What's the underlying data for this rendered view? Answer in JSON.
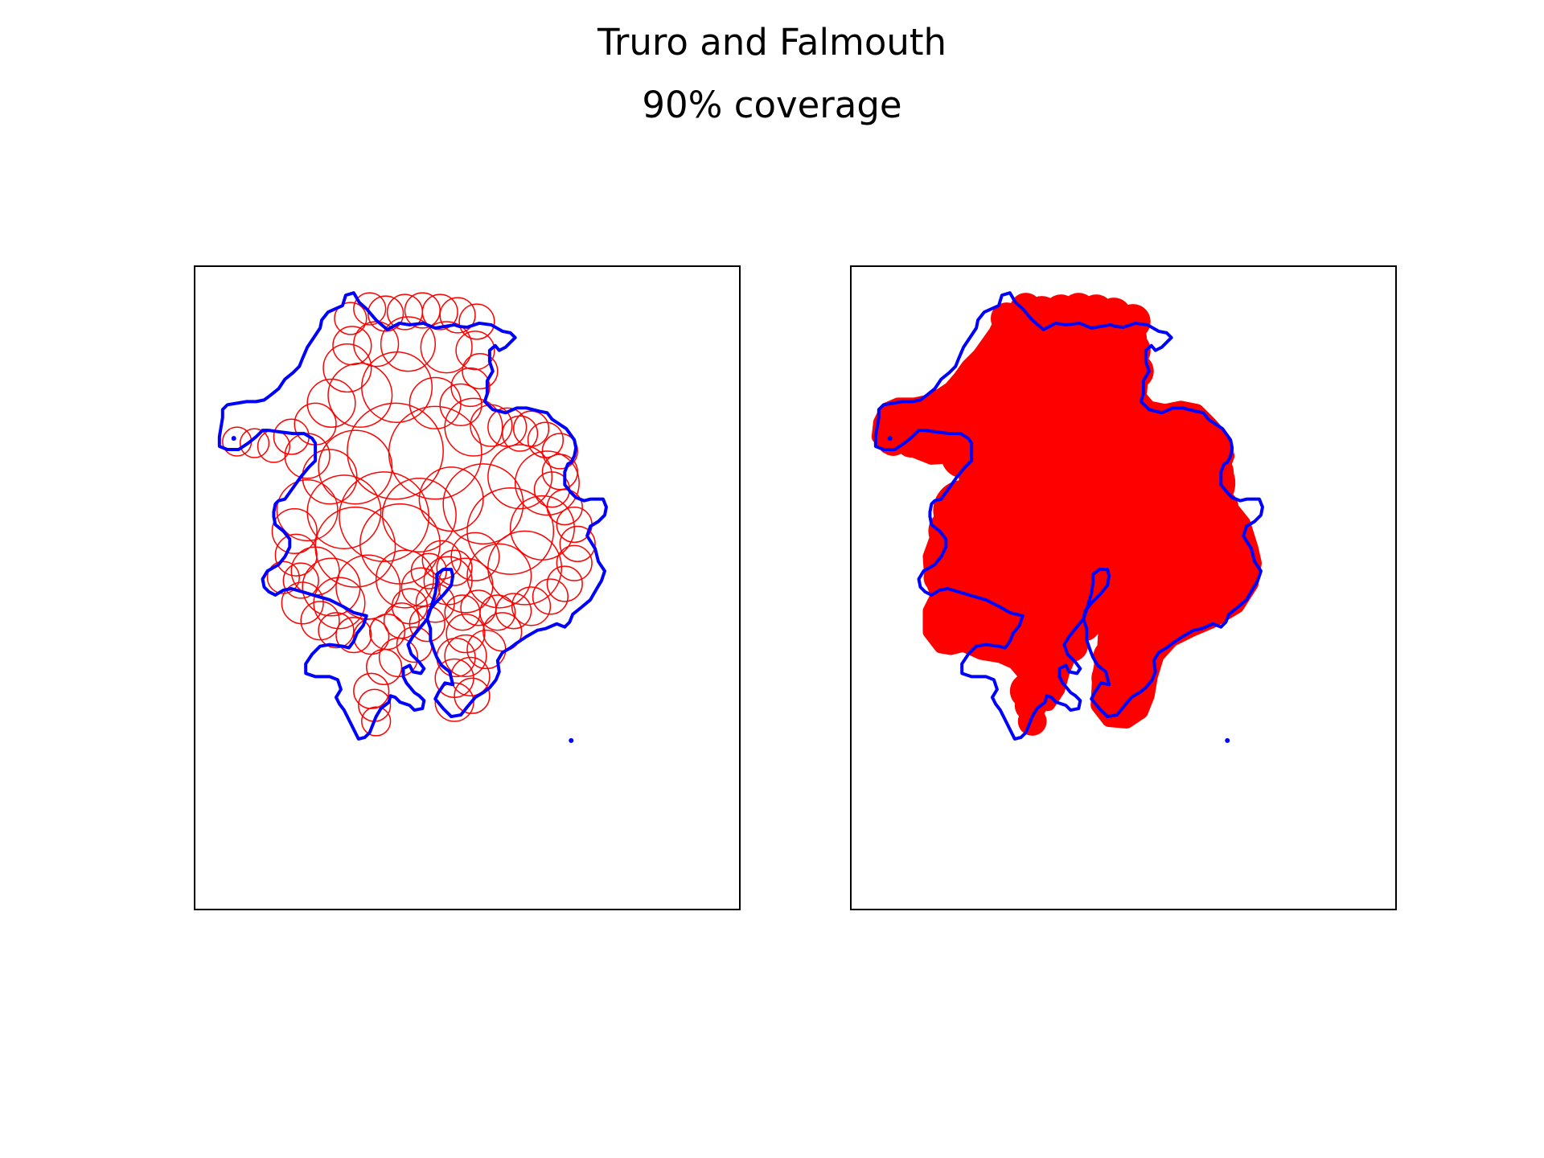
{
  "figure": {
    "title": "Truro and Falmouth",
    "subtitle": "90% coverage"
  },
  "colors": {
    "boundary": "#0000ff",
    "coverage": "#ff0000",
    "frame": "#000000",
    "background": "#ffffff"
  },
  "panels": [
    {
      "name": "circle-outlines",
      "style": "outline"
    },
    {
      "name": "filled-coverage",
      "style": "filled"
    }
  ]
}
